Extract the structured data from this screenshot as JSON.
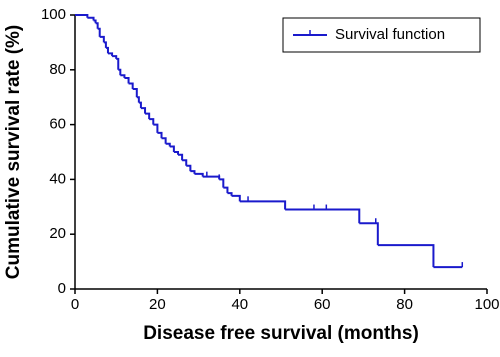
{
  "chart_data": {
    "type": "step",
    "xlabel": "Disease free survival (months)",
    "ylabel": "Cumulative survival rate (%)",
    "xlim": [
      0,
      100
    ],
    "xticks": [
      0,
      20,
      40,
      60,
      80,
      100
    ],
    "ylim": [
      0,
      100
    ],
    "yticks": [
      0,
      20,
      40,
      60,
      80,
      100
    ],
    "legend": "upper right",
    "series": [
      {
        "name": "Survival function",
        "color": "#1a1acc",
        "x": [
          0,
          3,
          4.5,
          5,
          5.5,
          6,
          7,
          7.5,
          8,
          9,
          10,
          10.5,
          11,
          12,
          13,
          14,
          15,
          15.5,
          16,
          17,
          18,
          19,
          20,
          21,
          22,
          23,
          24,
          25,
          26,
          27,
          28,
          29,
          31,
          35,
          36,
          37,
          38,
          40,
          51,
          69,
          73.5,
          87,
          94
        ],
        "values": [
          100,
          99,
          98,
          97,
          95,
          92,
          90,
          88,
          86,
          85,
          84,
          80,
          78,
          77,
          75,
          73,
          70,
          68,
          66,
          64,
          62,
          60,
          57,
          55,
          53,
          52,
          50,
          49,
          47,
          45,
          43,
          42,
          41,
          40,
          37,
          35,
          34,
          32,
          29,
          24,
          16,
          8,
          8
        ],
        "censored_x": [
          26,
          28,
          32,
          35,
          42,
          51,
          58,
          61,
          73,
          94
        ],
        "censored_values": [
          47,
          43,
          41,
          40,
          32,
          29,
          29,
          29,
          24,
          8
        ]
      }
    ]
  }
}
